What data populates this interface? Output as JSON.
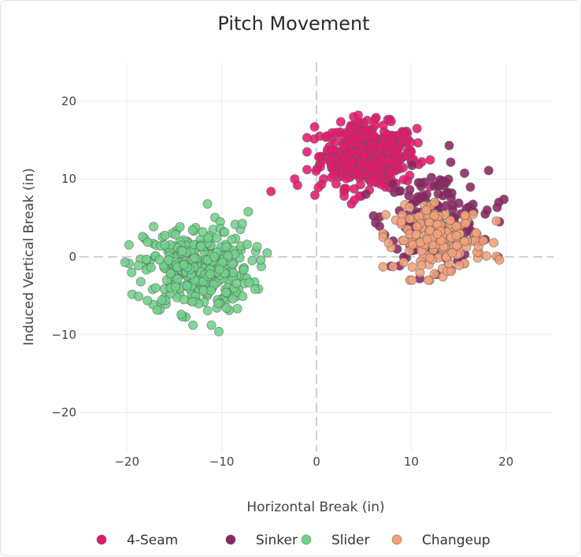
{
  "chart_data": {
    "type": "scatter",
    "title": "Pitch Movement",
    "xlabel": "Horizontal Break (in)",
    "ylabel": "Induced Vertical Break (in)",
    "xlim": [
      -25,
      25
    ],
    "ylim": [
      -25,
      25
    ],
    "x_ticks": [
      "−20",
      "−10",
      "0",
      "10",
      "20"
    ],
    "y_ticks": [
      "20",
      "10",
      "0",
      "−10",
      "−20"
    ],
    "grid": true,
    "zero_lines": "dashed",
    "legend_position": "bottom",
    "series": [
      {
        "name": "4-Seam",
        "color": "#e6196e",
        "center": [
          5.5,
          13
        ],
        "spread": [
          2.5,
          2.0
        ],
        "count": 450,
        "outliers": [
          [
            -4.8,
            8.4
          ],
          [
            -2.3,
            10
          ],
          [
            -2.0,
            9.2
          ],
          [
            -0.2,
            16.7
          ],
          [
            0.2,
            8.9
          ],
          [
            3.7,
            6.8
          ],
          [
            4.0,
            7.3
          ]
        ]
      },
      {
        "name": "Sinker",
        "color": "#8b2463",
        "center": [
          12.5,
          5
        ],
        "spread": [
          2.8,
          3.0
        ],
        "count": 150,
        "outliers": [
          [
            14,
            14.3
          ],
          [
            17.8,
            5.5
          ],
          [
            19.3,
            4.5
          ],
          [
            18,
            6.0
          ]
        ]
      },
      {
        "name": "Slider",
        "color": "#6fd18a",
        "center": [
          -12.5,
          -1.5
        ],
        "spread": [
          2.8,
          2.8
        ],
        "count": 360,
        "outliers": [
          [
            -20.2,
            -0.7
          ],
          [
            -19.5,
            -2.0
          ],
          [
            -10.3,
            -9.6
          ],
          [
            -11.5,
            6.8
          ],
          [
            -5.2,
            0.5
          ],
          [
            -7.2,
            5.8
          ]
        ]
      },
      {
        "name": "Changeup",
        "color": "#f4a07a",
        "center": [
          13,
          2.2
        ],
        "spread": [
          2.3,
          2.0
        ],
        "count": 180,
        "outliers": [
          [
            19.3,
            -0.4
          ],
          [
            18.7,
            1.8
          ],
          [
            9.2,
            -0.7
          ],
          [
            7.6,
            1.8
          ],
          [
            7.3,
            5.4
          ]
        ]
      }
    ]
  }
}
